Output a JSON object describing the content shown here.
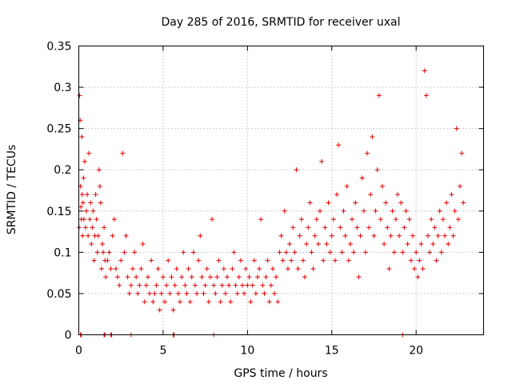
{
  "chart_data": {
    "type": "scatter",
    "title": "Day 285 of 2016, SRMTID for receiver uxal",
    "xlabel": "GPS time / hours",
    "ylabel": "SRMTID / TECUs",
    "xlim": [
      0,
      24
    ],
    "ylim": [
      0,
      0.35
    ],
    "xticks": [
      0,
      5,
      10,
      15,
      20
    ],
    "xtick_labels": [
      "0",
      "5",
      "10",
      "15",
      "20"
    ],
    "yticks": [
      0,
      0.05,
      0.1,
      0.15,
      0.2,
      0.25,
      0.3,
      0.35
    ],
    "ytick_labels": [
      "0",
      "0.05",
      "0.1",
      "0.15",
      "0.2",
      "0.25",
      "0.3",
      "0.35"
    ],
    "grid": true,
    "marker": "+",
    "color": "#e00000",
    "series": [
      {
        "name": "SRMTID",
        "points": [
          [
            0.02,
            0.13
          ],
          [
            0.05,
            0.29
          ],
          [
            0.08,
            0.26
          ],
          [
            0.1,
            0.18
          ],
          [
            0.12,
            0.155
          ],
          [
            0.15,
            0.14
          ],
          [
            0.18,
            0.24
          ],
          [
            0.2,
            0.17
          ],
          [
            0.22,
            0.12
          ],
          [
            0.25,
            0.16
          ],
          [
            0.28,
            0.19
          ],
          [
            0.3,
            0.14
          ],
          [
            0.35,
            0.21
          ],
          [
            0.4,
            0.13
          ],
          [
            0.45,
            0.15
          ],
          [
            0.5,
            0.17
          ],
          [
            0.55,
            0.12
          ],
          [
            0.6,
            0.22
          ],
          [
            0.65,
            0.14
          ],
          [
            0.7,
            0.16
          ],
          [
            0.75,
            0.11
          ],
          [
            0.8,
            0.13
          ],
          [
            0.85,
            0.15
          ],
          [
            0.9,
            0.09
          ],
          [
            0.95,
            0.12
          ],
          [
            1.0,
            0.17
          ],
          [
            1.05,
            0.14
          ],
          [
            1.1,
            0.1
          ],
          [
            1.15,
            0.12
          ],
          [
            1.2,
            0.2
          ],
          [
            1.25,
            0.18
          ],
          [
            1.3,
            0.16
          ],
          [
            1.35,
            0.08
          ],
          [
            1.4,
            0.11
          ],
          [
            1.45,
            0.1
          ],
          [
            1.5,
            0.13
          ],
          [
            1.55,
            0.09
          ],
          [
            1.6,
            0.07
          ],
          [
            1.7,
            0.09
          ],
          [
            1.8,
            0.1
          ],
          [
            1.9,
            0.08
          ],
          [
            2.0,
            0.12
          ],
          [
            2.1,
            0.14
          ],
          [
            2.2,
            0.08
          ],
          [
            2.3,
            0.07
          ],
          [
            2.4,
            0.06
          ],
          [
            2.5,
            0.09
          ],
          [
            2.6,
            0.22
          ],
          [
            2.7,
            0.1
          ],
          [
            2.8,
            0.12
          ],
          [
            2.9,
            0.07
          ],
          [
            3.0,
            0.05
          ],
          [
            3.1,
            0.06
          ],
          [
            3.2,
            0.08
          ],
          [
            3.3,
            0.1
          ],
          [
            3.4,
            0.07
          ],
          [
            3.5,
            0.05
          ],
          [
            3.6,
            0.06
          ],
          [
            3.7,
            0.08
          ],
          [
            3.8,
            0.11
          ],
          [
            3.9,
            0.04
          ],
          [
            4.0,
            0.06
          ],
          [
            4.1,
            0.07
          ],
          [
            4.2,
            0.05
          ],
          [
            4.3,
            0.09
          ],
          [
            4.4,
            0.04
          ],
          [
            4.5,
            0.05
          ],
          [
            4.6,
            0.06
          ],
          [
            4.7,
            0.08
          ],
          [
            4.8,
            0.03
          ],
          [
            4.9,
            0.05
          ],
          [
            5.0,
            0.07
          ],
          [
            5.1,
            0.04
          ],
          [
            5.2,
            0.06
          ],
          [
            5.3,
            0.09
          ],
          [
            5.4,
            0.05
          ],
          [
            5.5,
            0.07
          ],
          [
            5.6,
            0.03
          ],
          [
            5.7,
            0.06
          ],
          [
            5.8,
            0.08
          ],
          [
            5.9,
            0.05
          ],
          [
            6.0,
            0.04
          ],
          [
            6.1,
            0.07
          ],
          [
            6.2,
            0.1
          ],
          [
            6.3,
            0.06
          ],
          [
            6.4,
            0.05
          ],
          [
            6.5,
            0.08
          ],
          [
            6.6,
            0.04
          ],
          [
            6.7,
            0.07
          ],
          [
            6.8,
            0.1
          ],
          [
            6.9,
            0.06
          ],
          [
            7.0,
            0.05
          ],
          [
            7.1,
            0.09
          ],
          [
            7.2,
            0.12
          ],
          [
            7.3,
            0.07
          ],
          [
            7.4,
            0.05
          ],
          [
            7.5,
            0.06
          ],
          [
            7.6,
            0.08
          ],
          [
            7.7,
            0.04
          ],
          [
            7.8,
            0.07
          ],
          [
            7.9,
            0.14
          ],
          [
            8.0,
            0.06
          ],
          [
            8.1,
            0.05
          ],
          [
            8.2,
            0.07
          ],
          [
            8.3,
            0.09
          ],
          [
            8.4,
            0.04
          ],
          [
            8.5,
            0.06
          ],
          [
            8.6,
            0.08
          ],
          [
            8.7,
            0.05
          ],
          [
            8.8,
            0.07
          ],
          [
            8.9,
            0.06
          ],
          [
            9.0,
            0.04
          ],
          [
            9.1,
            0.08
          ],
          [
            9.2,
            0.1
          ],
          [
            9.3,
            0.06
          ],
          [
            9.4,
            0.05
          ],
          [
            9.5,
            0.07
          ],
          [
            9.6,
            0.09
          ],
          [
            9.7,
            0.06
          ],
          [
            9.8,
            0.05
          ],
          [
            9.9,
            0.08
          ],
          [
            10.0,
            0.06
          ],
          [
            10.1,
            0.07
          ],
          [
            10.2,
            0.04
          ],
          [
            10.3,
            0.06
          ],
          [
            10.4,
            0.09
          ],
          [
            10.5,
            0.05
          ],
          [
            10.6,
            0.07
          ],
          [
            10.7,
            0.08
          ],
          [
            10.8,
            0.14
          ],
          [
            10.9,
            0.06
          ],
          [
            11.0,
            0.05
          ],
          [
            11.1,
            0.07
          ],
          [
            11.2,
            0.09
          ],
          [
            11.3,
            0.04
          ],
          [
            11.4,
            0.06
          ],
          [
            11.5,
            0.08
          ],
          [
            11.6,
            0.05
          ],
          [
            11.7,
            0.07
          ],
          [
            11.8,
            0.04
          ],
          [
            11.9,
            0.1
          ],
          [
            12.0,
            0.12
          ],
          [
            12.1,
            0.09
          ],
          [
            12.2,
            0.15
          ],
          [
            12.3,
            0.1
          ],
          [
            12.4,
            0.08
          ],
          [
            12.5,
            0.11
          ],
          [
            12.6,
            0.09
          ],
          [
            12.7,
            0.13
          ],
          [
            12.8,
            0.1
          ],
          [
            12.9,
            0.2
          ],
          [
            13.0,
            0.08
          ],
          [
            13.1,
            0.12
          ],
          [
            13.2,
            0.14
          ],
          [
            13.3,
            0.09
          ],
          [
            13.4,
            0.07
          ],
          [
            13.5,
            0.11
          ],
          [
            13.6,
            0.13
          ],
          [
            13.7,
            0.16
          ],
          [
            13.8,
            0.1
          ],
          [
            13.9,
            0.08
          ],
          [
            14.0,
            0.12
          ],
          [
            14.1,
            0.14
          ],
          [
            14.2,
            0.11
          ],
          [
            14.3,
            0.15
          ],
          [
            14.4,
            0.21
          ],
          [
            14.5,
            0.09
          ],
          [
            14.6,
            0.13
          ],
          [
            14.7,
            0.11
          ],
          [
            14.8,
            0.16
          ],
          [
            14.9,
            0.1
          ],
          [
            15.0,
            0.12
          ],
          [
            15.1,
            0.14
          ],
          [
            15.2,
            0.09
          ],
          [
            15.3,
            0.17
          ],
          [
            15.4,
            0.23
          ],
          [
            15.5,
            0.13
          ],
          [
            15.6,
            0.1
          ],
          [
            15.7,
            0.15
          ],
          [
            15.8,
            0.12
          ],
          [
            15.9,
            0.18
          ],
          [
            16.0,
            0.09
          ],
          [
            16.1,
            0.11
          ],
          [
            16.2,
            0.14
          ],
          [
            16.3,
            0.1
          ],
          [
            16.4,
            0.16
          ],
          [
            16.5,
            0.13
          ],
          [
            16.6,
            0.07
          ],
          [
            16.7,
            0.12
          ],
          [
            16.8,
            0.19
          ],
          [
            16.9,
            0.15
          ],
          [
            17.0,
            0.1
          ],
          [
            17.1,
            0.22
          ],
          [
            17.2,
            0.13
          ],
          [
            17.3,
            0.17
          ],
          [
            17.4,
            0.24
          ],
          [
            17.5,
            0.12
          ],
          [
            17.6,
            0.15
          ],
          [
            17.7,
            0.2
          ],
          [
            17.8,
            0.29
          ],
          [
            17.9,
            0.14
          ],
          [
            18.0,
            0.18
          ],
          [
            18.1,
            0.11
          ],
          [
            18.2,
            0.16
          ],
          [
            18.3,
            0.13
          ],
          [
            18.4,
            0.08
          ],
          [
            18.5,
            0.12
          ],
          [
            18.6,
            0.15
          ],
          [
            18.7,
            0.1
          ],
          [
            18.8,
            0.14
          ],
          [
            18.9,
            0.17
          ],
          [
            19.0,
            0.12
          ],
          [
            19.1,
            0.16
          ],
          [
            19.2,
            0.1
          ],
          [
            19.3,
            0.13
          ],
          [
            19.4,
            0.15
          ],
          [
            19.5,
            0.11
          ],
          [
            19.6,
            0.14
          ],
          [
            19.7,
            0.09
          ],
          [
            19.8,
            0.12
          ],
          [
            19.9,
            0.08
          ],
          [
            20.0,
            0.1
          ],
          [
            20.1,
            0.07
          ],
          [
            20.2,
            0.09
          ],
          [
            20.3,
            0.11
          ],
          [
            20.4,
            0.08
          ],
          [
            20.5,
            0.32
          ],
          [
            20.6,
            0.29
          ],
          [
            20.7,
            0.12
          ],
          [
            20.8,
            0.1
          ],
          [
            20.9,
            0.14
          ],
          [
            21.0,
            0.11
          ],
          [
            21.1,
            0.13
          ],
          [
            21.2,
            0.09
          ],
          [
            21.3,
            0.12
          ],
          [
            21.4,
            0.15
          ],
          [
            21.5,
            0.1
          ],
          [
            21.6,
            0.14
          ],
          [
            21.7,
            0.12
          ],
          [
            21.8,
            0.16
          ],
          [
            21.9,
            0.11
          ],
          [
            22.0,
            0.13
          ],
          [
            22.1,
            0.17
          ],
          [
            22.2,
            0.12
          ],
          [
            22.3,
            0.15
          ],
          [
            22.4,
            0.25
          ],
          [
            22.5,
            0.14
          ],
          [
            22.6,
            0.18
          ],
          [
            22.7,
            0.22
          ],
          [
            22.8,
            0.16
          ]
        ]
      }
    ],
    "zero_points_x": [
      0.1,
      0.15,
      1.5,
      1.55,
      1.9,
      1.95,
      3.1,
      5.6,
      5.65,
      8.0,
      19.2
    ]
  }
}
